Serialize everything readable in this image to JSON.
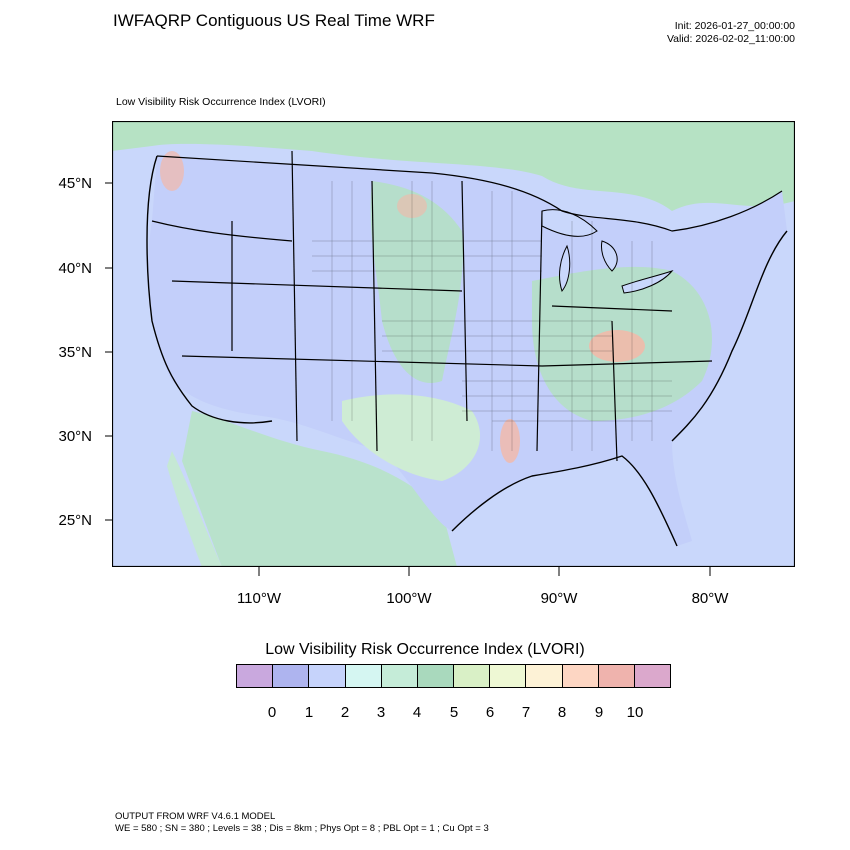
{
  "header": {
    "title": "IWFAQRP Contiguous US Real Time WRF",
    "init": "Init: 2026-01-27_00:00:00",
    "valid": "Valid: 2026-02-02_11:00:00"
  },
  "map": {
    "subtitle": "Low Visibility Risk Occurrence Index   (LVORI)",
    "lat_labels": [
      "45°N",
      "40°N",
      "35°N",
      "30°N",
      "25°N"
    ],
    "lon_labels": [
      "110°W",
      "100°W",
      "90°W",
      "80°W"
    ],
    "colors": {
      "ocean": "#c9d7fb",
      "land_low": "#c3cffa",
      "land_green": "#a8d9bb",
      "land_light_green": "#cfeecf",
      "hotspot": "#f4b8a8"
    }
  },
  "legend": {
    "title": "Low Visibility Risk Occurrence Index  (LVORI)",
    "ticks": [
      "0",
      "1",
      "2",
      "3",
      "4",
      "5",
      "6",
      "7",
      "8",
      "9",
      "10"
    ],
    "colors": [
      "#c9a8de",
      "#aeb4ef",
      "#c6d3fb",
      "#d5f6f2",
      "#c5ecd8",
      "#a9d9bd",
      "#d9f0c6",
      "#eef8d4",
      "#fdf2d6",
      "#fdd6c3",
      "#efb3ad",
      "#dba8cc"
    ]
  },
  "footer": {
    "line1": "OUTPUT FROM WRF V4.6.1 MODEL",
    "line2": "WE = 580 ; SN = 380 ; Levels = 38 ; Dis = 8km ; Phys Opt = 8 ; PBL Opt = 1 ; Cu Opt = 3"
  }
}
